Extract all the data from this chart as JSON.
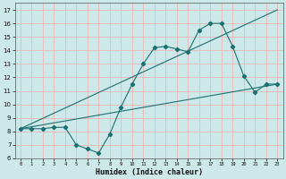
{
  "xlabel": "Humidex (Indice chaleur)",
  "bg_color": "#cce8e8",
  "grid_color": "#e8b8b8",
  "line_color": "#1a7070",
  "xlim": [
    -0.5,
    23.5
  ],
  "ylim": [
    6,
    17.5
  ],
  "xticks": [
    0,
    1,
    2,
    3,
    4,
    5,
    6,
    7,
    8,
    9,
    10,
    11,
    12,
    13,
    14,
    15,
    16,
    17,
    18,
    19,
    20,
    21,
    22,
    23
  ],
  "yticks": [
    6,
    7,
    8,
    9,
    10,
    11,
    12,
    13,
    14,
    15,
    16,
    17
  ],
  "line1_x": [
    0,
    1,
    2,
    3,
    4,
    5,
    6,
    7,
    8,
    9,
    10,
    11,
    12,
    13,
    14,
    15,
    16,
    17,
    18,
    19,
    20,
    21,
    22,
    23
  ],
  "line1_y": [
    8.2,
    8.2,
    8.2,
    8.3,
    8.3,
    7.0,
    6.7,
    6.4,
    7.8,
    9.8,
    11.5,
    13.0,
    14.2,
    14.3,
    14.1,
    13.9,
    15.5,
    16.0,
    16.0,
    14.3,
    12.1,
    10.9,
    11.5,
    11.5
  ],
  "line2_x": [
    0,
    23
  ],
  "line2_y": [
    8.2,
    11.5
  ],
  "line3_x": [
    0,
    23
  ],
  "line3_y": [
    8.2,
    17.0
  ]
}
